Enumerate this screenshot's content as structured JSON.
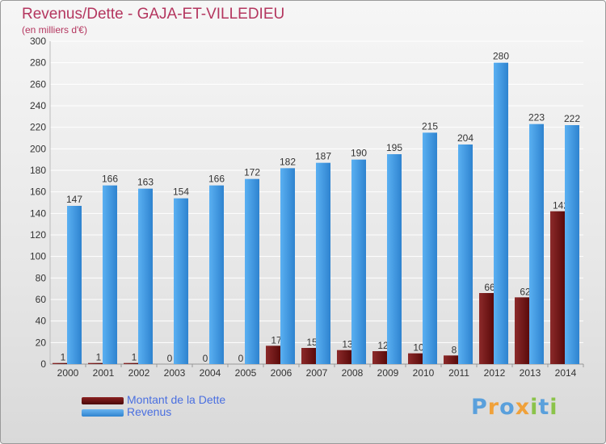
{
  "title": "Revenus/Dette - GAJA-ET-VILLEDIEU",
  "subtitle": "(en milliers d'€)",
  "colors": {
    "dette": "#7a1717",
    "revenus": "#4d9fe4",
    "grid": "#ffffff",
    "text": "#333333",
    "title": "#b4365f",
    "legend_text": "#4a6fe0"
  },
  "legend": [
    {
      "label": "Montant de la Dette",
      "color": "#6b0f0f"
    },
    {
      "label": "Revenus",
      "color": "#4d9fe4"
    }
  ],
  "logo": {
    "text": "Proxiti",
    "letter_colors": [
      "#5aa0dc",
      "#f0a13a",
      "#5aa0dc",
      "#f0a13a",
      "#8bc34a",
      "#5aa0dc",
      "#8bc34a"
    ]
  },
  "chart_data": {
    "type": "bar",
    "title": "Revenus/Dette - GAJA-ET-VILLEDIEU",
    "subtitle": "(en milliers d'€)",
    "categories": [
      "2000",
      "2001",
      "2002",
      "2003",
      "2004",
      "2005",
      "2006",
      "2007",
      "2008",
      "2009",
      "2010",
      "2011",
      "2012",
      "2013",
      "2014"
    ],
    "series": [
      {
        "name": "Montant de la Dette",
        "values": [
          1,
          1,
          1,
          0,
          0,
          0,
          17,
          15,
          13,
          12,
          10,
          8,
          66,
          62,
          142
        ]
      },
      {
        "name": "Revenus",
        "values": [
          147,
          166,
          163,
          154,
          166,
          172,
          182,
          187,
          190,
          195,
          215,
          204,
          280,
          223,
          222
        ]
      }
    ],
    "ylim": [
      0,
      300
    ],
    "yticks": [
      0,
      20,
      40,
      60,
      80,
      100,
      120,
      140,
      160,
      180,
      200,
      220,
      240,
      260,
      280,
      300
    ],
    "grid": true,
    "legend_position": "bottom-left"
  }
}
